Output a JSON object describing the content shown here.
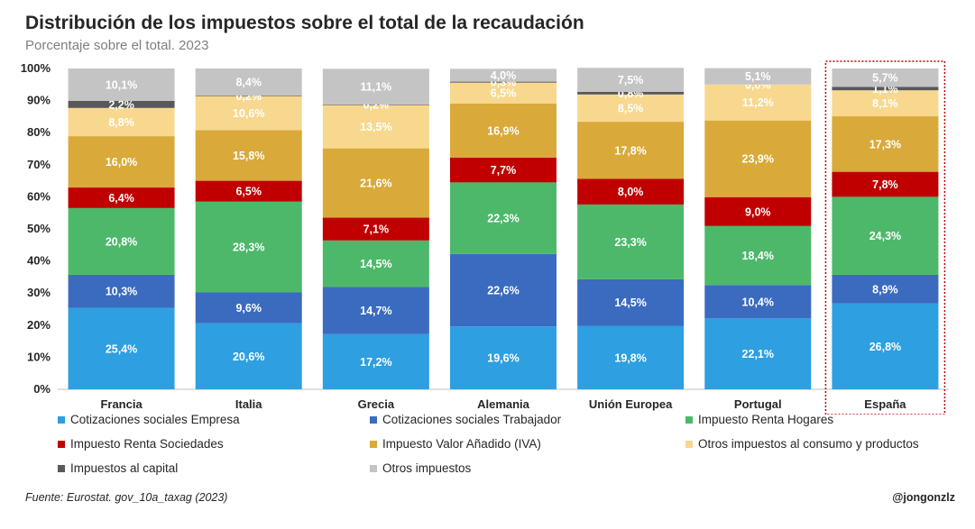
{
  "title": "Distribución de los impuestos sobre el total de la recaudación",
  "subtitle": "Porcentaje sobre el total. 2023",
  "source": "Fuente: Eurostat. gov_10a_taxag (2023)",
  "credit": "@jongonzlz",
  "chart_data": {
    "type": "bar",
    "stacked": true,
    "categories": [
      "Francia",
      "Italia",
      "Grecia",
      "Alemania",
      "Unión Europea",
      "Portugal",
      "España"
    ],
    "highlight": "España",
    "ylim": [
      0,
      100
    ],
    "yticks": [
      "0%",
      "10%",
      "20%",
      "30%",
      "40%",
      "50%",
      "60%",
      "70%",
      "80%",
      "90%",
      "100%"
    ],
    "legend_position": "bottom",
    "series": [
      {
        "name": "Cotizaciones sociales Empresa",
        "color": "#2e9fe0",
        "values": [
          25.4,
          20.6,
          17.2,
          19.6,
          19.8,
          22.1,
          26.8
        ],
        "labels": [
          "25,4%",
          "20,6%",
          "17,2%",
          "19,6%",
          "19,8%",
          "22,1%",
          "26,8%"
        ]
      },
      {
        "name": "Cotizaciones sociales Trabajador",
        "color": "#3a6bbf",
        "values": [
          10.3,
          9.6,
          14.7,
          22.6,
          14.5,
          10.4,
          8.9
        ],
        "labels": [
          "10,3%",
          "9,6%",
          "14,7%",
          "22,6%",
          "14,5%",
          "10,4%",
          "8,9%"
        ]
      },
      {
        "name": "Impuesto Renta Hogares",
        "color": "#4db86a",
        "values": [
          20.8,
          28.3,
          14.5,
          22.3,
          23.3,
          18.4,
          24.3
        ],
        "labels": [
          "20,8%",
          "28,3%",
          "14,5%",
          "22,3%",
          "23,3%",
          "18,4%",
          "24,3%"
        ]
      },
      {
        "name": "Impuesto Renta Sociedades",
        "color": "#c00000",
        "values": [
          6.4,
          6.5,
          7.1,
          7.7,
          8.0,
          9.0,
          7.8
        ],
        "labels": [
          "6,4%",
          "6,5%",
          "7,1%",
          "7,7%",
          "8,0%",
          "9,0%",
          "7,8%"
        ]
      },
      {
        "name": "Impuesto Valor Añadido (IVA)",
        "color": "#d9a93a",
        "values": [
          16.0,
          15.8,
          21.6,
          16.9,
          17.8,
          23.9,
          17.3
        ],
        "labels": [
          "16,0%",
          "15,8%",
          "21,6%",
          "16,9%",
          "17,8%",
          "23,9%",
          "17,3%"
        ]
      },
      {
        "name": "Otros impuestos al consumo y productos",
        "color": "#f7d88e",
        "values": [
          8.8,
          10.6,
          13.5,
          6.5,
          8.5,
          11.2,
          8.1
        ],
        "labels": [
          "8,8%",
          "10,6%",
          "13,5%",
          "6,5%",
          "8,5%",
          "11,2%",
          "8,1%"
        ]
      },
      {
        "name": "Impuestos al capital",
        "color": "#595959",
        "values": [
          2.2,
          0.2,
          0.2,
          0.3,
          0.8,
          0.0,
          1.1
        ],
        "labels": [
          "2,2%",
          "0,2%",
          "0,2%",
          "0,3%",
          "0,8%",
          "0,0%",
          "1,1%"
        ]
      },
      {
        "name": "Otros impuestos",
        "color": "#c4c4c4",
        "values": [
          10.1,
          8.4,
          11.1,
          4.0,
          7.5,
          5.1,
          5.7
        ],
        "labels": [
          "10,1%",
          "8,4%",
          "11,1%",
          "4,0%",
          "7,5%",
          "5,1%",
          "5,7%"
        ]
      }
    ]
  }
}
